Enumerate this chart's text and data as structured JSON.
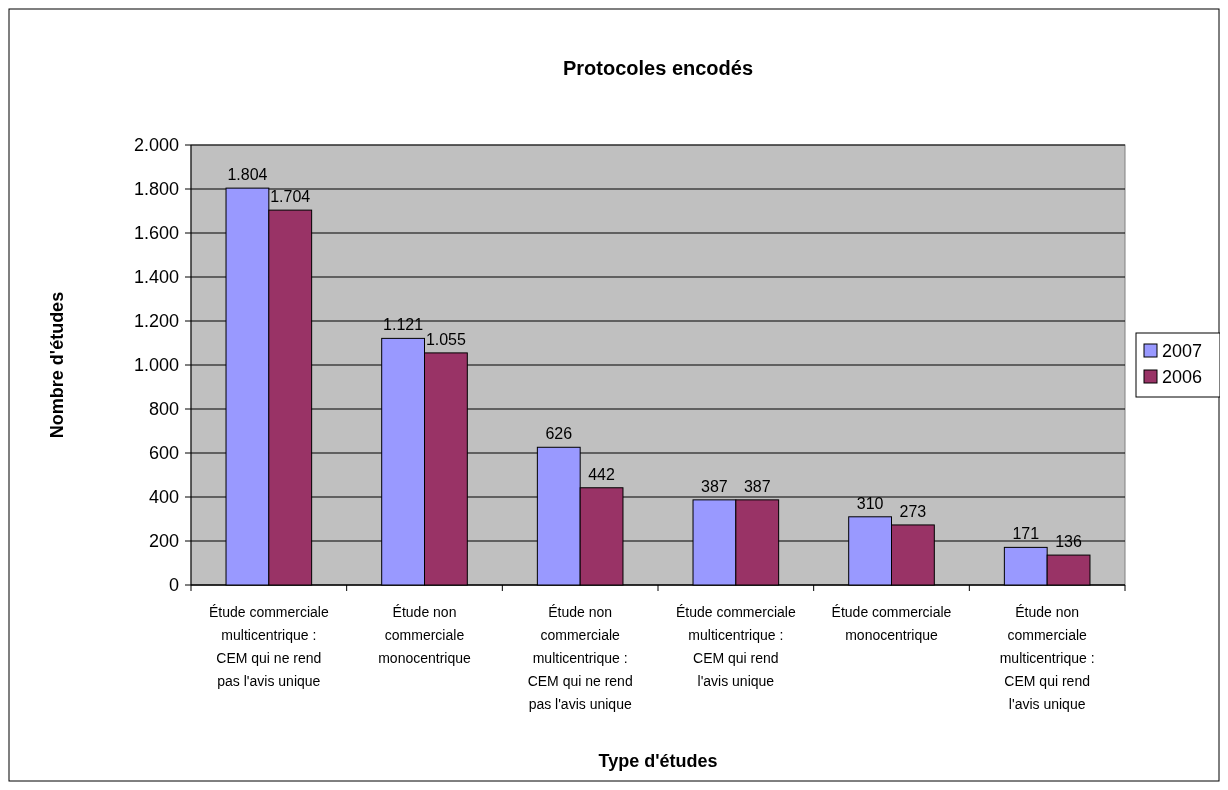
{
  "chart_data": {
    "type": "bar",
    "title": "Protocoles encodés",
    "xlabel": "Type d'études",
    "ylabel": "Nombre d'études",
    "categories": [
      "Étude commerciale multicentrique : CEM qui ne rend pas l'avis unique",
      "Étude non commerciale monocentrique",
      "Étude non commerciale multicentrique : CEM qui ne rend pas l'avis unique",
      "Étude commerciale multicentrique : CEM qui rend l'avis unique",
      "Étude commerciale monocentrique",
      "Étude non commerciale multicentrique : CEM qui rend l'avis unique"
    ],
    "series": [
      {
        "name": "2007",
        "color": "#9999ff",
        "values": [
          1804,
          1121,
          626,
          387,
          310,
          171
        ],
        "value_labels": [
          "1.804",
          "1.121",
          "626",
          "387",
          "310",
          "171"
        ]
      },
      {
        "name": "2006",
        "color": "#993366",
        "values": [
          1704,
          1055,
          442,
          387,
          273,
          136
        ],
        "value_labels": [
          "1.704",
          "1.055",
          "442",
          "387",
          "273",
          "136"
        ]
      }
    ],
    "ylim": [
      0,
      2000
    ],
    "yticks": [
      0,
      200,
      400,
      600,
      800,
      {
        "value": 1000,
        "label": "1.000"
      },
      {
        "value": 1200,
        "label": "1.200"
      },
      {
        "value": 1400,
        "label": "1.400"
      },
      {
        "value": 1600,
        "label": "1.600"
      },
      {
        "value": 1800,
        "label": "1.800"
      },
      {
        "value": 2000,
        "label": "2.000"
      }
    ],
    "grid": "y",
    "legend": "right"
  }
}
